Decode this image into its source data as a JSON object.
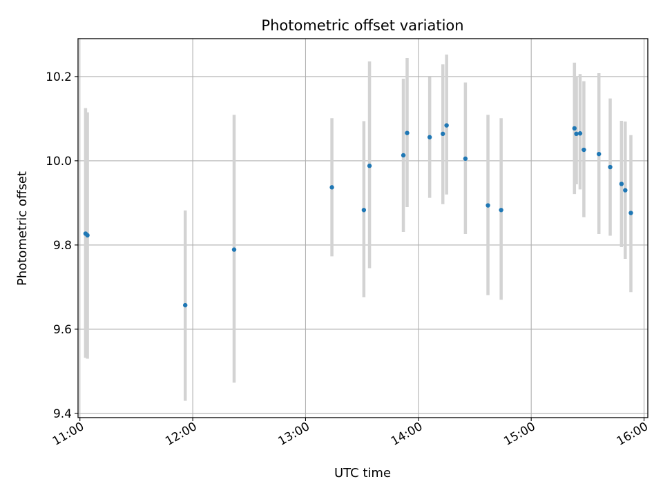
{
  "chart_data": {
    "type": "scatter",
    "title": "Photometric offset variation",
    "xlabel": "UTC time",
    "ylabel": "Photometric offset",
    "x_ticks": [
      "11:00",
      "12:00",
      "13:00",
      "14:00",
      "15:00",
      "16:00"
    ],
    "y_ticks": [
      "9.4",
      "9.6",
      "9.8",
      "10.0",
      "10.2"
    ],
    "xlim": [
      "10:59",
      "16:02"
    ],
    "ylim": [
      9.39,
      10.29
    ],
    "grid": true,
    "marker_color": "#1f77b4",
    "errorbar_color": "#d3d3d3",
    "series": [
      {
        "x": [
          "11:03",
          "11:04",
          "11:56",
          "12:22",
          "13:14",
          "13:31",
          "13:34",
          "13:52",
          "13:54",
          "14:06",
          "14:13",
          "14:15",
          "14:25",
          "14:37",
          "14:44",
          "15:23",
          "15:24",
          "15:26",
          "15:28",
          "15:36",
          "15:42",
          "15:48",
          "15:50",
          "15:53"
        ],
        "y": [
          9.827,
          9.823,
          9.657,
          9.789,
          9.937,
          9.883,
          9.988,
          10.013,
          10.066,
          10.056,
          10.064,
          10.084,
          10.005,
          9.894,
          9.883,
          10.077,
          10.064,
          10.065,
          10.026,
          10.016,
          9.985,
          9.945,
          9.93,
          9.876
        ],
        "y_low": [
          9.532,
          9.53,
          9.43,
          9.473,
          9.773,
          9.676,
          9.745,
          9.831,
          9.89,
          9.912,
          9.897,
          9.92,
          9.826,
          9.681,
          9.67,
          9.921,
          9.944,
          9.932,
          9.866,
          9.826,
          9.822,
          9.795,
          9.767,
          9.688
        ],
        "y_high": [
          10.125,
          10.115,
          9.882,
          10.109,
          10.101,
          10.094,
          10.236,
          10.195,
          10.244,
          10.199,
          10.229,
          10.252,
          10.186,
          10.109,
          10.101,
          10.233,
          10.201,
          10.206,
          10.189,
          10.208,
          10.148,
          10.095,
          10.093,
          10.061
        ]
      }
    ]
  }
}
